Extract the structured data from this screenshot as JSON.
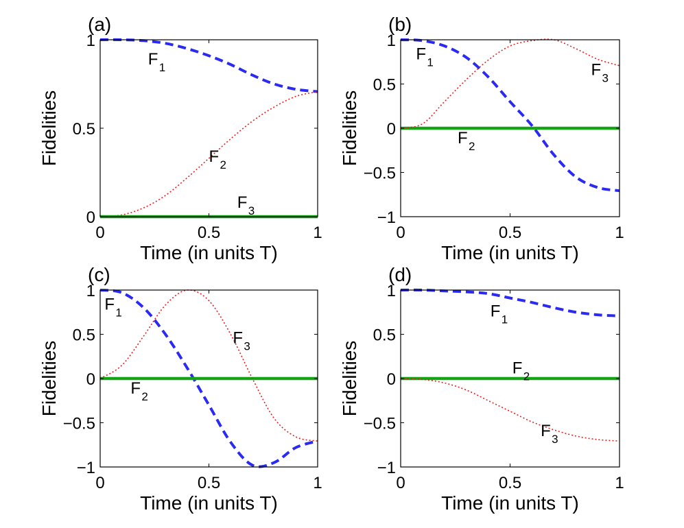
{
  "chart_data": [
    {
      "panel": "(a)",
      "type": "line",
      "xlabel": "Time  (in units T)",
      "ylabel": "Fidelities",
      "xlim": [
        0,
        1
      ],
      "ylim": [
        0,
        1
      ],
      "xticks": [
        "0",
        "0.5",
        "1"
      ],
      "yticks": [
        "0",
        "0.5",
        "1"
      ],
      "x": [
        0,
        0.1,
        0.2,
        0.3,
        0.4,
        0.5,
        0.6,
        0.7,
        0.8,
        0.9,
        1.0
      ],
      "series": [
        {
          "name": "F1",
          "label_main": "F",
          "label_sub": "1",
          "style": "dashed",
          "color": "#2a2af2",
          "values": [
            1.0,
            1.0,
            0.995,
            0.98,
            0.95,
            0.91,
            0.86,
            0.8,
            0.75,
            0.72,
            0.707
          ]
        },
        {
          "name": "F2",
          "label_main": "F",
          "label_sub": "2",
          "style": "dotted",
          "color": "#e81c1c",
          "values": [
            0.0,
            0.01,
            0.05,
            0.12,
            0.22,
            0.33,
            0.44,
            0.54,
            0.62,
            0.68,
            0.707
          ]
        },
        {
          "name": "F3",
          "label_main": "F",
          "label_sub": "3",
          "style": "solid",
          "color": "#17a317",
          "values": [
            0,
            0,
            0,
            0,
            0,
            0,
            0,
            0,
            0,
            0,
            0
          ]
        }
      ],
      "annotations": [
        {
          "series": "F1",
          "x": 0.22,
          "y": 0.86
        },
        {
          "series": "F2",
          "x": 0.5,
          "y": 0.31
        },
        {
          "series": "F3",
          "x": 0.63,
          "y": 0.05
        }
      ]
    },
    {
      "panel": "(b)",
      "type": "line",
      "xlabel": "Time (in units T)",
      "ylabel": "Fidelities",
      "xlim": [
        0,
        1
      ],
      "ylim": [
        -1,
        1
      ],
      "xticks": [
        "0",
        "0.5",
        "1"
      ],
      "yticks": [
        "−1",
        "−0.5",
        "0",
        "0.5",
        "1"
      ],
      "x": [
        0,
        0.1,
        0.2,
        0.3,
        0.4,
        0.5,
        0.6,
        0.7,
        0.8,
        0.9,
        1.0
      ],
      "series": [
        {
          "name": "F1",
          "label_main": "F",
          "label_sub": "1",
          "style": "dashed",
          "color": "#2a2af2",
          "values": [
            1.0,
            0.99,
            0.93,
            0.8,
            0.58,
            0.3,
            0.03,
            -0.3,
            -0.55,
            -0.67,
            -0.707
          ]
        },
        {
          "name": "F2",
          "label_main": "F",
          "label_sub": "2",
          "style": "solid",
          "color": "#17a317",
          "values": [
            0,
            0,
            0,
            0,
            0,
            0,
            0,
            0,
            0,
            0,
            0
          ]
        },
        {
          "name": "F3",
          "label_main": "F",
          "label_sub": "3",
          "style": "dotted",
          "color": "#e81c1c",
          "values": [
            0.0,
            0.05,
            0.3,
            0.55,
            0.77,
            0.93,
            0.99,
            1.0,
            0.9,
            0.78,
            0.707
          ]
        }
      ],
      "annotations": [
        {
          "series": "F1",
          "x": 0.07,
          "y": 0.78
        },
        {
          "series": "F3",
          "x": 0.87,
          "y": 0.6
        },
        {
          "series": "F2",
          "x": 0.26,
          "y": -0.17
        }
      ]
    },
    {
      "panel": "(c)",
      "type": "line",
      "xlabel": "Time (in units T)",
      "ylabel": "Fidelities",
      "xlim": [
        0,
        1
      ],
      "ylim": [
        -1,
        1
      ],
      "xticks": [
        "0",
        "0.5",
        "1"
      ],
      "yticks": [
        "−1",
        "−0.5",
        "0",
        "0.5",
        "1"
      ],
      "x": [
        0,
        0.1,
        0.2,
        0.3,
        0.4,
        0.5,
        0.6,
        0.7,
        0.8,
        0.9,
        1.0
      ],
      "series": [
        {
          "name": "F1",
          "label_main": "F",
          "label_sub": "1",
          "style": "dashed",
          "color": "#2a2af2",
          "values": [
            1.0,
            0.97,
            0.8,
            0.5,
            0.12,
            -0.3,
            -0.72,
            -0.98,
            -0.95,
            -0.78,
            -0.707
          ]
        },
        {
          "name": "F2",
          "label_main": "F",
          "label_sub": "2",
          "style": "solid",
          "color": "#17a317",
          "values": [
            0,
            0,
            0,
            0,
            0,
            0,
            0,
            0,
            0,
            0,
            0
          ]
        },
        {
          "name": "F3",
          "label_main": "F",
          "label_sub": "3",
          "style": "dotted",
          "color": "#e81c1c",
          "values": [
            0.0,
            0.15,
            0.48,
            0.83,
            1.0,
            0.88,
            0.5,
            0.0,
            -0.45,
            -0.66,
            -0.707
          ]
        }
      ],
      "annotations": [
        {
          "series": "F1",
          "x": 0.02,
          "y": 0.78
        },
        {
          "series": "F3",
          "x": 0.61,
          "y": 0.4
        },
        {
          "series": "F2",
          "x": 0.14,
          "y": -0.17
        }
      ]
    },
    {
      "panel": "(d)",
      "type": "line",
      "xlabel": "Time (in units T)",
      "ylabel": "Fidelities",
      "xlim": [
        0,
        1
      ],
      "ylim": [
        -1,
        1
      ],
      "xticks": [
        "0",
        "0.5",
        "1"
      ],
      "yticks": [
        "−1",
        "−0.5",
        "0",
        "0.5",
        "1"
      ],
      "x": [
        0,
        0.1,
        0.2,
        0.3,
        0.4,
        0.5,
        0.6,
        0.7,
        0.8,
        0.9,
        1.0
      ],
      "series": [
        {
          "name": "F1",
          "label_main": "F",
          "label_sub": "1",
          "style": "dashed",
          "color": "#2a2af2",
          "values": [
            1.0,
            1.0,
            0.99,
            0.98,
            0.96,
            0.91,
            0.86,
            0.8,
            0.75,
            0.72,
            0.707
          ]
        },
        {
          "name": "F2",
          "label_main": "F",
          "label_sub": "2",
          "style": "solid",
          "color": "#17a317",
          "values": [
            0,
            0,
            0,
            0,
            0,
            0,
            0,
            0,
            0,
            0,
            0
          ]
        },
        {
          "name": "F3",
          "label_main": "F",
          "label_sub": "3",
          "style": "dotted",
          "color": "#e81c1c",
          "values": [
            0.0,
            -0.01,
            -0.05,
            -0.13,
            -0.25,
            -0.37,
            -0.49,
            -0.58,
            -0.65,
            -0.69,
            -0.707
          ]
        }
      ],
      "annotations": [
        {
          "series": "F1",
          "x": 0.41,
          "y": 0.7
        },
        {
          "series": "F2",
          "x": 0.51,
          "y": 0.06
        },
        {
          "series": "F3",
          "x": 0.64,
          "y": -0.65
        }
      ]
    }
  ]
}
